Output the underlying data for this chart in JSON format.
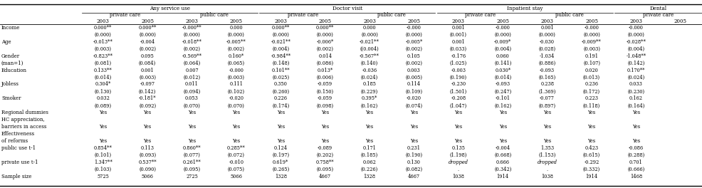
{
  "rows": [
    {
      "label": "Income",
      "se": false,
      "vals": [
        "0.000**",
        "0.000**",
        "-0.000**",
        "0.000",
        "0.000**",
        "0.000**",
        "0.000",
        "-0.000",
        "0.001",
        "-0.000",
        "0.001",
        "-0.000",
        "-0.000",
        ""
      ]
    },
    {
      "label": "",
      "se": true,
      "vals": [
        "(0.000)",
        "(0.000)",
        "(0.000)",
        "(0.000)",
        "(0.000)",
        "(0.000)",
        "(0.000)",
        "(0.000)",
        "(0.001)",
        "(0.000)",
        "(0.000)",
        "(0.000)",
        "(0.000)",
        ""
      ]
    },
    {
      "label": "Age",
      "se": false,
      "vals": [
        "-0.013**",
        "-0.004",
        "-0.018**",
        "-0.005**",
        "-0.021**",
        "-0.006*",
        "-0.021**",
        "-0.005*",
        "0.001",
        "-0.009*",
        "-0.030",
        "-0.009**",
        "-0.028**",
        ""
      ]
    },
    {
      "label": "",
      "se": true,
      "vals": [
        "(0.003)",
        "(0.002)",
        "(0.002)",
        "(0.002)",
        "(0.004)",
        "(0.002)",
        "((0.004)",
        "(0.002)",
        "(0.033)",
        "(0.004)",
        "(0.028)",
        "(0.003)",
        "(0.004)",
        ""
      ]
    },
    {
      "label": "Gender",
      "se": false,
      "vals": [
        "-0.823**",
        "0.095",
        "-0.569**",
        "0.160*",
        "-0.984**",
        "0.014",
        "-0.567**",
        "0.105",
        "-0.176",
        "0.060",
        "-1.034",
        "0.191",
        "-1.048**",
        ""
      ]
    },
    {
      "label": "(man=1)",
      "se": true,
      "vals": [
        "(0.081)",
        "(0.084)",
        "(0.064)",
        "(0.065)",
        "(0.148)",
        "(0.086)",
        "(0.140)",
        "(0.002)",
        "(1.025)",
        "(0.141)",
        "(0.886)",
        "(0.107)",
        "(0.142)",
        ""
      ]
    },
    {
      "label": "Education",
      "se": false,
      "vals": [
        "0.133**",
        "0.001",
        "0.007",
        "-0.000",
        "0.101**",
        "0.013*",
        "-0.036",
        "0.003",
        "-0.003",
        "0.030*",
        "-0.093",
        "0.020",
        "0.170**",
        ""
      ]
    },
    {
      "label": "",
      "se": true,
      "vals": [
        "(0.014)",
        "(0.003)",
        "(0.012)",
        "(0.003)",
        "(0.025)",
        "(0.006)",
        "(0.024)",
        "(0.005)",
        "(0.190)",
        "(0.014)",
        "(0.165)",
        "(0.013)",
        "(0.024)",
        ""
      ]
    },
    {
      "label": "Jobless",
      "se": false,
      "vals": [
        "0.304*",
        "-0.097",
        "0.011",
        "0.111",
        "0.350",
        "-0.059",
        "0.185",
        "0.114",
        "-0.230",
        "-0.093",
        "0.238",
        "0.236",
        "0.033",
        ""
      ]
    },
    {
      "label": "",
      "se": true,
      "vals": [
        "(0.130)",
        "(0.142)",
        "(0.094)",
        "(0.102)",
        "(0.260)",
        "(0.150)",
        "(0.229)",
        "(0.109)",
        "(1.501)",
        "(0.247)",
        "(1.369)",
        "(0.172)",
        "(0.230)",
        ""
      ]
    },
    {
      "label": "Smoker",
      "se": false,
      "vals": [
        "0.032",
        "-0.181*",
        "0.053",
        "-0.020",
        "0.226",
        "-0.059",
        "0.395*",
        "-0.020",
        "-0.208",
        "-0.101",
        "-0.077",
        "0.223",
        "0.162",
        ""
      ]
    },
    {
      "label": "",
      "se": true,
      "vals": [
        "(0.089)",
        "(0.092)",
        "(0.070)",
        "(0.070)",
        "(0.174)",
        "(0.098)",
        "(0.162)",
        "(0.074)",
        "(1.047)",
        "(0.162)",
        "(0.897)",
        "(0.118)",
        "(0.164)",
        ""
      ]
    },
    {
      "label": "Regional dummies",
      "se": false,
      "vals": [
        "Yes",
        "Yes",
        "Yes",
        "Yes",
        "Yes",
        "Yes",
        "Yes",
        "Yes",
        "Yes",
        "Yes",
        "Yes",
        "Yes",
        "Yes",
        ""
      ]
    },
    {
      "label": "HC appreciation,",
      "se": false,
      "vals": [
        "",
        "",
        "",
        "",
        "",
        "",
        "",
        "",
        "",
        "",
        "",
        "",
        "",
        ""
      ]
    },
    {
      "label": "barriers in access",
      "se": false,
      "vals": [
        "Yes",
        "Yes",
        "Yes",
        "Yes",
        "Yes",
        "Yes",
        "Yes",
        "Yes",
        "Yes",
        "Yes",
        "Yes",
        "Yes",
        "Yes",
        ""
      ]
    },
    {
      "label": "Effectiveness",
      "se": false,
      "vals": [
        "",
        "",
        "",
        "",
        "",
        "",
        "",
        "",
        "",
        "",
        "",
        "",
        "",
        ""
      ]
    },
    {
      "label": "of reforms",
      "se": false,
      "vals": [
        "Yes",
        "Yes",
        "Yes",
        "Yes",
        "Yes",
        "Yes",
        "Yes",
        "Yes",
        "Yes",
        "Yes",
        "Yes",
        "Yes",
        "Yes",
        ""
      ]
    },
    {
      "label": "public use t-1",
      "se": false,
      "vals": [
        "0.854**",
        "0.113",
        "0.860**",
        "0.285**",
        "0.124",
        "-0.089",
        "0.171",
        "0.231",
        "0.135",
        "-0.004",
        "1.353",
        "0.423",
        "-0.086",
        ""
      ]
    },
    {
      "label": "",
      "se": true,
      "vals": [
        "(0.101)",
        "(0.093)",
        "(0.077)",
        "(0.072)",
        "(0.197)",
        "(0.202)",
        "(0.185)",
        "(0.190)",
        "(1.198)",
        "(0.668)",
        "(1.153)",
        "(0.615)",
        "(0.288)",
        ""
      ]
    },
    {
      "label": "private use t-1",
      "se": false,
      "vals": [
        "1.347**",
        "0.537**",
        "0.261**",
        "-0.010",
        "0.619*",
        "0.758**",
        "0.062",
        "0.130",
        "dropped",
        "0.666",
        "dropped",
        "-0.292",
        "0.701",
        ""
      ]
    },
    {
      "label": "",
      "se": true,
      "vals": [
        "(0.103)",
        "(0.090)",
        "(0.095)",
        "(0.075)",
        "(0.265)",
        "(0.095)",
        "(0.226)",
        "(0.082)",
        ".",
        "(0.342)",
        ".",
        "(0.332)",
        "(0.666)",
        ""
      ]
    },
    {
      "label": "Sample size",
      "se": false,
      "vals": [
        "5725",
        "5066",
        "2725",
        "5066",
        "1328",
        "4667",
        "1328",
        "4667",
        "1038",
        "1914",
        "1038",
        "1914",
        "1468",
        ""
      ]
    }
  ],
  "col_header1": [
    {
      "text": "Any service use",
      "c1": 0,
      "c2": 3
    },
    {
      "text": "Doctor visit",
      "c1": 4,
      "c2": 7
    },
    {
      "text": "Inpatient stay",
      "c1": 8,
      "c2": 11
    },
    {
      "text": "Dental",
      "c1": 12,
      "c2": 13
    }
  ],
  "col_header2": [
    {
      "text": "private care",
      "c1": 0,
      "c2": 1
    },
    {
      "text": "public care",
      "c1": 2,
      "c2": 3
    },
    {
      "text": "private care",
      "c1": 4,
      "c2": 5
    },
    {
      "text": "public care",
      "c1": 6,
      "c2": 7
    },
    {
      "text": "private care",
      "c1": 8,
      "c2": 9
    },
    {
      "text": "public care",
      "c1": 10,
      "c2": 11
    },
    {
      "text": "private care",
      "c1": 12,
      "c2": 13
    }
  ],
  "years": [
    "2003",
    "2005",
    "2003",
    "2005",
    "2003",
    "2005",
    "2003",
    "2005",
    "2003",
    "2005",
    "2003",
    "2005",
    "2003",
    "2005"
  ]
}
